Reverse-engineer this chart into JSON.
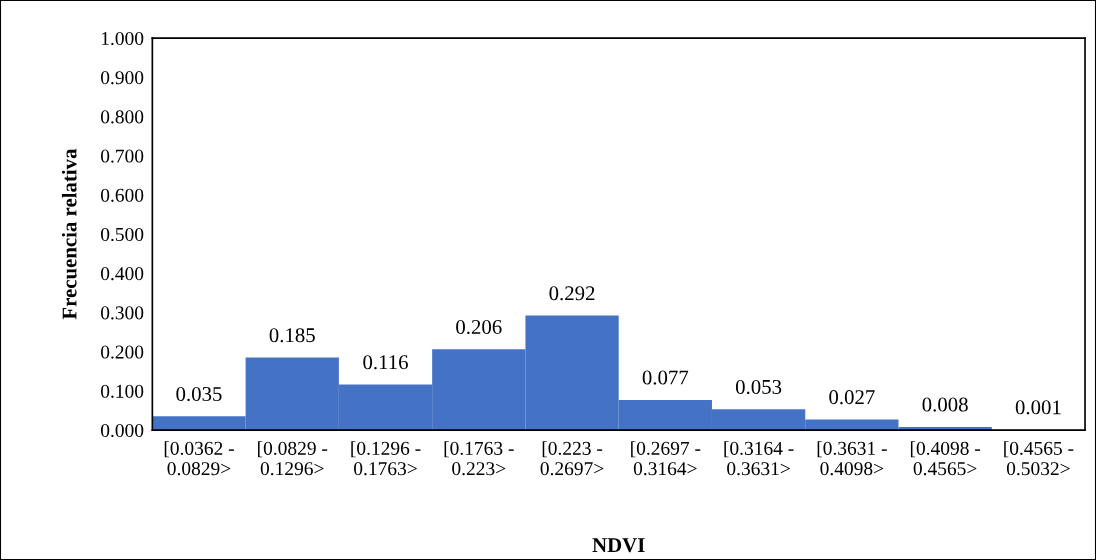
{
  "chart_data": {
    "type": "bar",
    "xlabel": "NDVI",
    "ylabel": "Frecuencia relativa",
    "categories": [
      "[0.0362 -\n0.0829>",
      "[0.0829 -\n0.1296>",
      "[0.1296 -\n0.1763>",
      "[0.1763 -\n0.223>",
      "[0.223 -\n0.2697>",
      "[0.2697 -\n0.3164>",
      "[0.3164 -\n0.3631>",
      "[0.3631 -\n0.4098>",
      "[0.4098 -\n0.4565>",
      "[0.4565 -\n0.5032>"
    ],
    "values": [
      0.035,
      0.185,
      0.116,
      0.206,
      0.292,
      0.077,
      0.053,
      0.027,
      0.008,
      0.001
    ],
    "color": "#4472c4",
    "data_labels": true,
    "grid": false,
    "legend": false,
    "ylim": [
      0,
      1
    ],
    "yticks": [
      {
        "value": 0,
        "label": "0.000"
      },
      {
        "value": 0.1,
        "label": "0.100"
      },
      {
        "value": 0.2,
        "label": "0.200"
      },
      {
        "value": 0.3,
        "label": "0.300"
      },
      {
        "value": 0.4,
        "label": "0.400"
      },
      {
        "value": 0.5,
        "label": "0.500"
      },
      {
        "value": 0.6,
        "label": "0.600"
      },
      {
        "value": 0.7,
        "label": "0.700"
      },
      {
        "value": 0.8,
        "label": "0.800"
      },
      {
        "value": 0.9,
        "label": "0.900"
      },
      {
        "value": 1,
        "label": "1.000"
      }
    ]
  }
}
